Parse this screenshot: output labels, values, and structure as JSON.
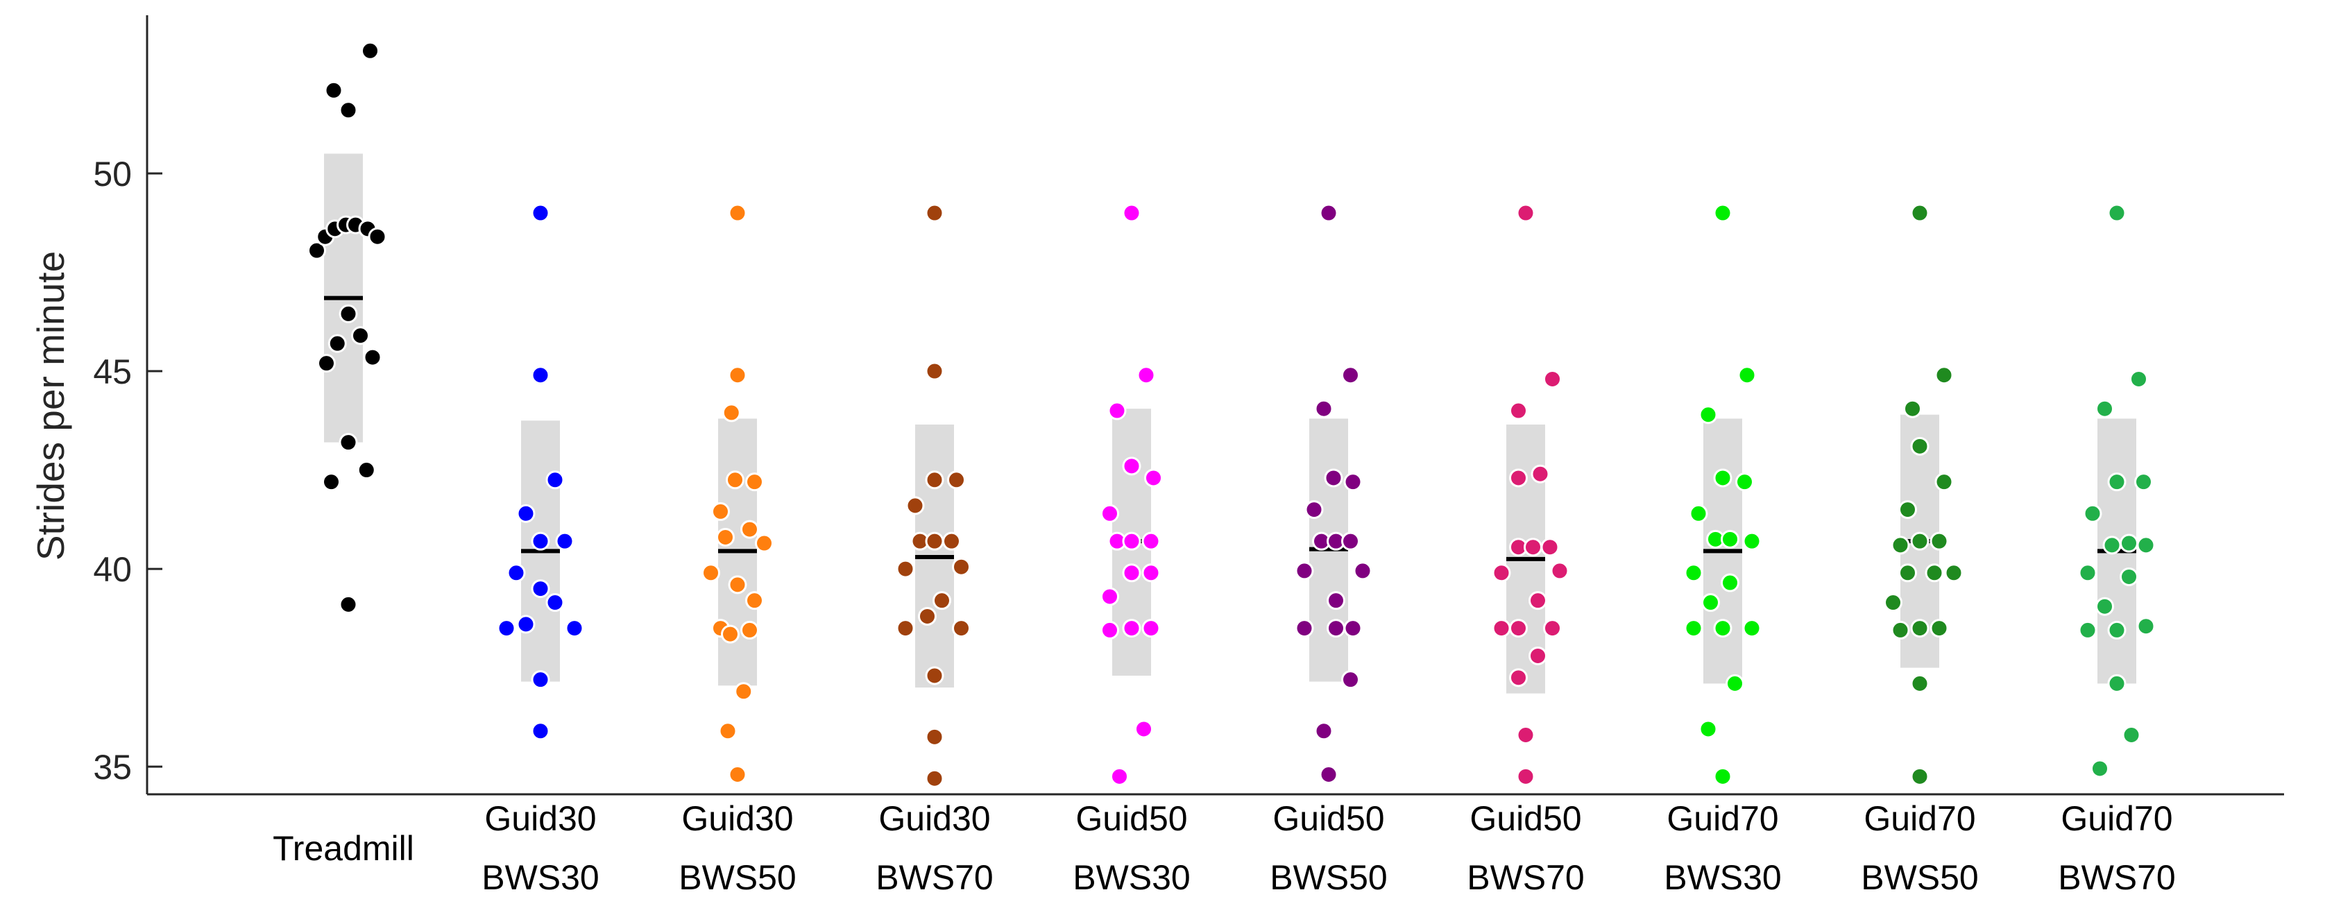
{
  "chart_data": {
    "type": "scatter",
    "title": "",
    "xlabel": "",
    "ylabel": "Strides per minute",
    "ylim": [
      34.3,
      54
    ],
    "yticks": [
      35,
      40,
      45,
      50
    ],
    "grid": false,
    "legend": "none",
    "groups": [
      {
        "label": [
          "Treadmill"
        ],
        "color": "#000000",
        "mean": 46.85,
        "band": [
          43.2,
          50.5
        ],
        "points": [
          [
            0.22,
            53.1
          ],
          [
            -0.08,
            52.1
          ],
          [
            0.04,
            51.6
          ],
          [
            -0.22,
            48.05
          ],
          [
            -0.15,
            48.4
          ],
          [
            -0.07,
            48.6
          ],
          [
            0.02,
            48.7
          ],
          [
            0.1,
            48.7
          ],
          [
            0.2,
            48.6
          ],
          [
            0.28,
            48.4
          ],
          [
            0.04,
            46.45
          ],
          [
            0.14,
            45.9
          ],
          [
            -0.05,
            45.7
          ],
          [
            0.24,
            45.35
          ],
          [
            -0.14,
            45.2
          ],
          [
            0.04,
            43.2
          ],
          [
            0.19,
            42.5
          ],
          [
            -0.1,
            42.2
          ],
          [
            0.04,
            39.1
          ]
        ]
      },
      {
        "label": [
          "Guid30",
          "BWS30"
        ],
        "color": "#0000ff",
        "mean": 40.45,
        "band": [
          37.15,
          43.75
        ],
        "points": [
          [
            0.0,
            49.0
          ],
          [
            0.0,
            44.9
          ],
          [
            0.12,
            42.25
          ],
          [
            -0.12,
            41.4
          ],
          [
            0.0,
            40.7
          ],
          [
            0.2,
            40.7
          ],
          [
            -0.2,
            39.9
          ],
          [
            0.0,
            39.5
          ],
          [
            0.12,
            39.15
          ],
          [
            -0.12,
            38.6
          ],
          [
            -0.28,
            38.5
          ],
          [
            0.28,
            38.5
          ],
          [
            0.0,
            37.2
          ],
          [
            0.0,
            35.9
          ]
        ]
      },
      {
        "label": [
          "Guid30",
          "BWS50"
        ],
        "color": "#ff7f0e",
        "mean": 40.45,
        "band": [
          37.05,
          43.8
        ],
        "points": [
          [
            0.0,
            49.0
          ],
          [
            0.0,
            44.9
          ],
          [
            -0.05,
            43.95
          ],
          [
            -0.02,
            42.25
          ],
          [
            0.14,
            42.2
          ],
          [
            -0.14,
            41.45
          ],
          [
            0.1,
            41.0
          ],
          [
            -0.1,
            40.8
          ],
          [
            0.22,
            40.65
          ],
          [
            -0.22,
            39.9
          ],
          [
            0.0,
            39.6
          ],
          [
            0.14,
            39.2
          ],
          [
            -0.14,
            38.5
          ],
          [
            -0.06,
            38.35
          ],
          [
            0.1,
            38.45
          ],
          [
            0.05,
            36.9
          ],
          [
            -0.08,
            35.9
          ],
          [
            0.0,
            34.8
          ]
        ]
      },
      {
        "label": [
          "Guid30",
          "BWS70"
        ],
        "color": "#a0410d",
        "mean": 40.3,
        "band": [
          37.0,
          43.65
        ],
        "points": [
          [
            0.0,
            49.0
          ],
          [
            0.0,
            45.0
          ],
          [
            0.0,
            42.25
          ],
          [
            0.18,
            42.25
          ],
          [
            -0.16,
            41.6
          ],
          [
            -0.12,
            40.7
          ],
          [
            0.0,
            40.7
          ],
          [
            0.14,
            40.7
          ],
          [
            -0.24,
            40.0
          ],
          [
            0.22,
            40.05
          ],
          [
            0.06,
            39.2
          ],
          [
            -0.06,
            38.8
          ],
          [
            -0.24,
            38.5
          ],
          [
            0.22,
            38.5
          ],
          [
            0.0,
            37.3
          ],
          [
            0.0,
            35.75
          ],
          [
            0.0,
            34.7
          ]
        ]
      },
      {
        "label": [
          "Guid50",
          "BWS30"
        ],
        "color": "#ff00ff",
        "mean": 40.7,
        "band": [
          37.3,
          44.05
        ],
        "points": [
          [
            0.0,
            49.0
          ],
          [
            0.12,
            44.9
          ],
          [
            -0.12,
            44.0
          ],
          [
            0.0,
            42.6
          ],
          [
            0.18,
            42.3
          ],
          [
            -0.18,
            41.4
          ],
          [
            -0.12,
            40.7
          ],
          [
            0.0,
            40.7
          ],
          [
            0.16,
            40.7
          ],
          [
            0.0,
            39.9
          ],
          [
            0.16,
            39.9
          ],
          [
            -0.18,
            39.3
          ],
          [
            -0.18,
            38.45
          ],
          [
            0.0,
            38.5
          ],
          [
            0.16,
            38.5
          ],
          [
            0.1,
            35.95
          ],
          [
            -0.1,
            34.75
          ]
        ]
      },
      {
        "label": [
          "Guid50",
          "BWS50"
        ],
        "color": "#800080",
        "mean": 40.5,
        "band": [
          37.15,
          43.8
        ],
        "points": [
          [
            0.0,
            49.0
          ],
          [
            0.18,
            44.9
          ],
          [
            -0.04,
            44.05
          ],
          [
            0.04,
            42.3
          ],
          [
            0.2,
            42.2
          ],
          [
            -0.12,
            41.5
          ],
          [
            -0.06,
            40.7
          ],
          [
            0.06,
            40.7
          ],
          [
            0.18,
            40.7
          ],
          [
            -0.2,
            39.95
          ],
          [
            0.28,
            39.95
          ],
          [
            0.06,
            39.2
          ],
          [
            -0.2,
            38.5
          ],
          [
            0.06,
            38.5
          ],
          [
            0.2,
            38.5
          ],
          [
            0.18,
            37.2
          ],
          [
            -0.04,
            35.9
          ],
          [
            0.0,
            34.8
          ]
        ]
      },
      {
        "label": [
          "Guid50",
          "BWS70"
        ],
        "color": "#dc1c72",
        "mean": 40.25,
        "band": [
          36.85,
          43.65
        ],
        "points": [
          [
            0.0,
            49.0
          ],
          [
            0.22,
            44.8
          ],
          [
            -0.06,
            44.0
          ],
          [
            -0.06,
            42.3
          ],
          [
            0.12,
            42.4
          ],
          [
            -0.06,
            40.55
          ],
          [
            0.06,
            40.55
          ],
          [
            0.2,
            40.55
          ],
          [
            -0.2,
            39.9
          ],
          [
            0.28,
            39.95
          ],
          [
            0.1,
            39.2
          ],
          [
            -0.2,
            38.5
          ],
          [
            -0.06,
            38.5
          ],
          [
            0.22,
            38.5
          ],
          [
            0.1,
            37.8
          ],
          [
            -0.06,
            37.25
          ],
          [
            0.0,
            35.8
          ],
          [
            0.0,
            34.75
          ]
        ]
      },
      {
        "label": [
          "Guid70",
          "BWS30"
        ],
        "color": "#00ee00",
        "mean": 40.45,
        "band": [
          37.1,
          43.8
        ],
        "points": [
          [
            0.0,
            49.0
          ],
          [
            0.2,
            44.9
          ],
          [
            -0.12,
            43.9
          ],
          [
            0.0,
            42.3
          ],
          [
            0.18,
            42.2
          ],
          [
            -0.2,
            41.4
          ],
          [
            -0.06,
            40.75
          ],
          [
            0.06,
            40.75
          ],
          [
            0.24,
            40.7
          ],
          [
            -0.24,
            39.9
          ],
          [
            0.06,
            39.65
          ],
          [
            -0.1,
            39.15
          ],
          [
            -0.24,
            38.5
          ],
          [
            0.0,
            38.5
          ],
          [
            0.24,
            38.5
          ],
          [
            0.1,
            37.1
          ],
          [
            -0.12,
            35.95
          ],
          [
            0.0,
            34.75
          ]
        ]
      },
      {
        "label": [
          "Guid70",
          "BWS50"
        ],
        "color": "#1f8a1f",
        "mean": 40.7,
        "band": [
          37.5,
          43.9
        ],
        "points": [
          [
            0.0,
            49.0
          ],
          [
            0.2,
            44.9
          ],
          [
            -0.06,
            44.05
          ],
          [
            0.0,
            43.1
          ],
          [
            0.2,
            42.2
          ],
          [
            -0.1,
            41.5
          ],
          [
            0.0,
            40.7
          ],
          [
            0.16,
            40.7
          ],
          [
            -0.16,
            40.6
          ],
          [
            -0.1,
            39.9
          ],
          [
            0.12,
            39.9
          ],
          [
            0.28,
            39.9
          ],
          [
            -0.22,
            39.15
          ],
          [
            -0.16,
            38.45
          ],
          [
            0.0,
            38.5
          ],
          [
            0.16,
            38.5
          ],
          [
            0.0,
            37.1
          ],
          [
            0.0,
            34.75
          ]
        ]
      },
      {
        "label": [
          "Guid70",
          "BWS70"
        ],
        "color": "#22b04a",
        "mean": 40.45,
        "band": [
          37.1,
          43.8
        ],
        "points": [
          [
            0.0,
            49.0
          ],
          [
            0.18,
            44.8
          ],
          [
            -0.1,
            44.05
          ],
          [
            0.0,
            42.2
          ],
          [
            0.22,
            42.2
          ],
          [
            -0.2,
            41.4
          ],
          [
            -0.04,
            40.6
          ],
          [
            0.1,
            40.65
          ],
          [
            0.24,
            40.6
          ],
          [
            -0.24,
            39.9
          ],
          [
            0.1,
            39.8
          ],
          [
            -0.1,
            39.05
          ],
          [
            -0.24,
            38.45
          ],
          [
            0.0,
            38.45
          ],
          [
            0.24,
            38.55
          ],
          [
            0.0,
            37.1
          ],
          [
            0.12,
            35.8
          ],
          [
            -0.14,
            34.95
          ]
        ]
      }
    ]
  }
}
